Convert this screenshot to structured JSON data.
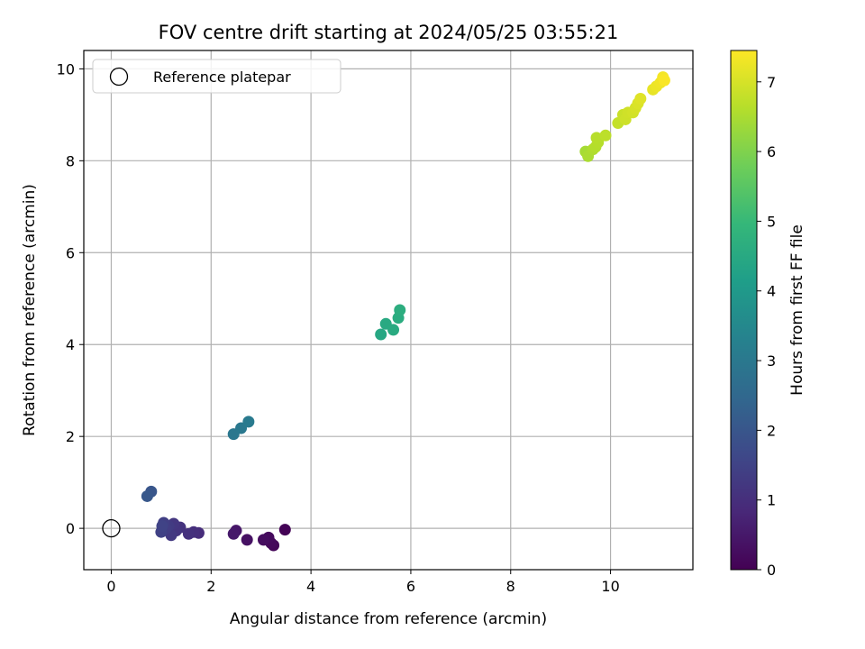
{
  "chart_data": {
    "type": "scatter",
    "title": "FOV centre drift starting at 2024/05/25 03:55:21",
    "xlabel": "Angular distance from reference (arcmin)",
    "ylabel": "Rotation from reference (arcmin)",
    "xlim": [
      -0.55,
      11.65
    ],
    "ylim": [
      -0.9,
      10.4
    ],
    "xticks": [
      "0",
      "2",
      "4",
      "6",
      "8",
      "10"
    ],
    "yticks": [
      "0",
      "2",
      "4",
      "6",
      "8",
      "10"
    ],
    "grid": true,
    "legend": {
      "placement": "top-left",
      "entries": [
        "Reference platepar"
      ]
    },
    "reference_point": {
      "x": 0,
      "y": 0
    },
    "colorbar": {
      "label": "Hours from first FF file",
      "range": [
        0,
        7.45
      ],
      "ticks": [
        "0",
        "1",
        "2",
        "3",
        "4",
        "5",
        "6",
        "7"
      ],
      "colormap": [
        "#440154",
        "#482878",
        "#3e4989",
        "#31688e",
        "#26828e",
        "#1f9e89",
        "#35b779",
        "#6ece58",
        "#b5de2b",
        "#fde725"
      ]
    },
    "points": [
      {
        "x": 3.48,
        "y": -0.03,
        "h": 0.05
      },
      {
        "x": 3.25,
        "y": -0.37,
        "h": 0.1
      },
      {
        "x": 3.2,
        "y": -0.32,
        "h": 0.15
      },
      {
        "x": 3.15,
        "y": -0.2,
        "h": 0.2
      },
      {
        "x": 3.05,
        "y": -0.25,
        "h": 0.25
      },
      {
        "x": 2.72,
        "y": -0.25,
        "h": 0.35
      },
      {
        "x": 2.5,
        "y": -0.05,
        "h": 0.45
      },
      {
        "x": 2.45,
        "y": -0.12,
        "h": 0.5
      },
      {
        "x": 1.75,
        "y": -0.1,
        "h": 0.95
      },
      {
        "x": 1.65,
        "y": -0.08,
        "h": 1.0
      },
      {
        "x": 1.55,
        "y": -0.12,
        "h": 1.05
      },
      {
        "x": 1.38,
        "y": 0.02,
        "h": 1.1
      },
      {
        "x": 1.3,
        "y": -0.05,
        "h": 1.15
      },
      {
        "x": 1.25,
        "y": 0.1,
        "h": 1.2
      },
      {
        "x": 1.2,
        "y": -0.15,
        "h": 1.25
      },
      {
        "x": 1.15,
        "y": 0.05,
        "h": 1.3
      },
      {
        "x": 1.1,
        "y": 0.0,
        "h": 1.35
      },
      {
        "x": 1.05,
        "y": 0.12,
        "h": 1.4
      },
      {
        "x": 1.0,
        "y": -0.08,
        "h": 1.45
      },
      {
        "x": 1.02,
        "y": 0.05,
        "h": 1.5
      },
      {
        "x": 0.8,
        "y": 0.8,
        "h": 2.0
      },
      {
        "x": 0.72,
        "y": 0.7,
        "h": 2.05
      },
      {
        "x": 2.45,
        "y": 2.05,
        "h": 2.95
      },
      {
        "x": 2.6,
        "y": 2.18,
        "h": 3.0
      },
      {
        "x": 2.75,
        "y": 2.32,
        "h": 3.05
      },
      {
        "x": 5.4,
        "y": 4.22,
        "h": 4.45
      },
      {
        "x": 5.5,
        "y": 4.45,
        "h": 4.5
      },
      {
        "x": 5.65,
        "y": 4.32,
        "h": 4.55
      },
      {
        "x": 5.75,
        "y": 4.58,
        "h": 4.6
      },
      {
        "x": 5.78,
        "y": 4.75,
        "h": 4.65
      },
      {
        "x": 9.5,
        "y": 8.2,
        "h": 6.45
      },
      {
        "x": 9.55,
        "y": 8.1,
        "h": 6.5
      },
      {
        "x": 9.65,
        "y": 8.25,
        "h": 6.55
      },
      {
        "x": 9.7,
        "y": 8.3,
        "h": 6.6
      },
      {
        "x": 9.75,
        "y": 8.4,
        "h": 6.62
      },
      {
        "x": 9.72,
        "y": 8.5,
        "h": 6.65
      },
      {
        "x": 9.9,
        "y": 8.55,
        "h": 6.7
      },
      {
        "x": 10.15,
        "y": 8.82,
        "h": 6.8
      },
      {
        "x": 10.25,
        "y": 9.0,
        "h": 6.85
      },
      {
        "x": 10.3,
        "y": 8.9,
        "h": 6.9
      },
      {
        "x": 10.35,
        "y": 9.05,
        "h": 6.92
      },
      {
        "x": 10.45,
        "y": 9.05,
        "h": 6.95
      },
      {
        "x": 10.5,
        "y": 9.15,
        "h": 7.0
      },
      {
        "x": 10.55,
        "y": 9.25,
        "h": 7.05
      },
      {
        "x": 10.6,
        "y": 9.35,
        "h": 7.1
      },
      {
        "x": 10.85,
        "y": 9.55,
        "h": 7.2
      },
      {
        "x": 10.92,
        "y": 9.62,
        "h": 7.25
      },
      {
        "x": 11.0,
        "y": 9.7,
        "h": 7.3
      },
      {
        "x": 11.05,
        "y": 9.82,
        "h": 7.35
      },
      {
        "x": 11.08,
        "y": 9.75,
        "h": 7.4
      }
    ]
  }
}
